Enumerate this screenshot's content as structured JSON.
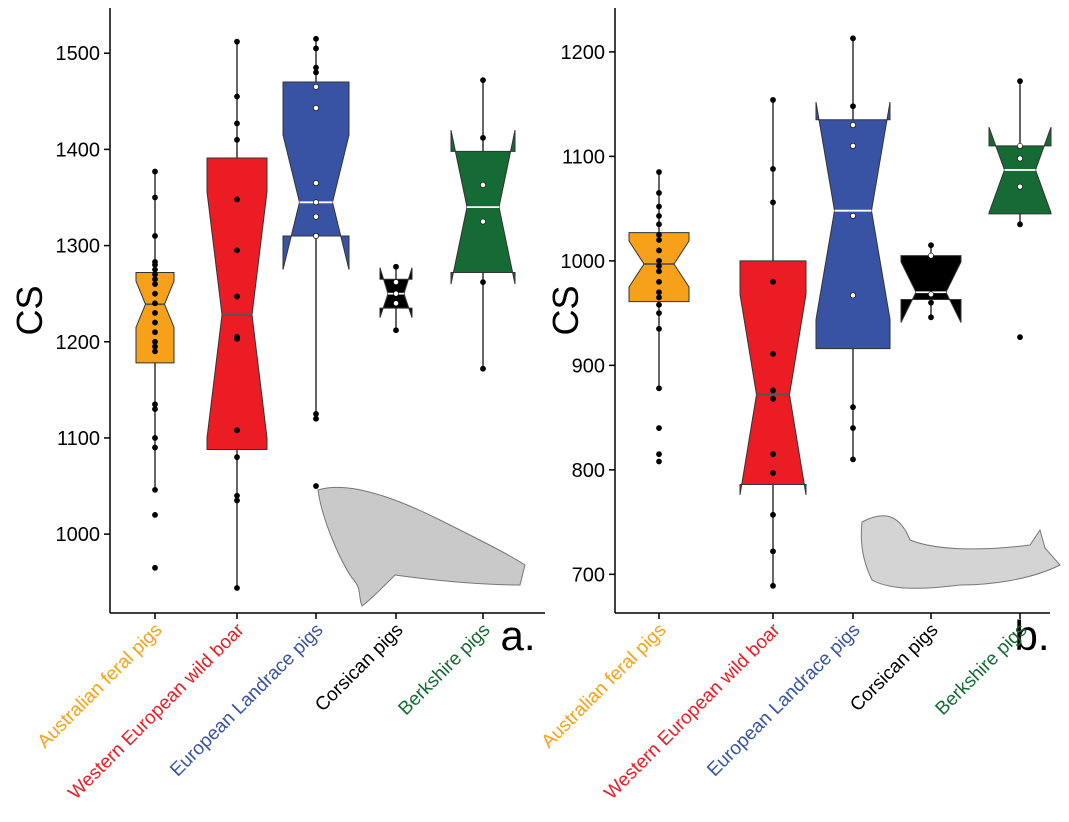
{
  "chart_data": [
    {
      "type": "boxplot",
      "ylabel": "CS",
      "panel_label": "a.",
      "ylim": [
        918,
        1547
      ],
      "yticks": [
        1000,
        1100,
        1200,
        1300,
        1400,
        1500
      ],
      "categories": [
        "Australian feral pigs",
        "Western European wild boar",
        "European Landrace pigs",
        "Corsican pigs",
        "Berkshire pigs"
      ],
      "colors": [
        "#f7a11a",
        "#ec1c24",
        "#3953a4",
        "#000000",
        "#166a34"
      ],
      "label_colors": [
        "#f7a11a",
        "#ec1c24",
        "#3953a4",
        "#000000",
        "#166a34"
      ],
      "median_colors": [
        "#555555",
        "#555555",
        "#ffffff",
        "#ffffff",
        "#ffffff"
      ],
      "inner_point_colors": [
        "#000000",
        "#000000",
        "#ffffff",
        "#ffffff",
        "#ffffff"
      ],
      "boxes": [
        {
          "whisker_low": 1046,
          "q1": 1178,
          "median": 1239,
          "q3": 1272,
          "whisker_high": 1377,
          "notch": [
            1215,
            1263
          ],
          "points": [
            1377,
            1350,
            1310,
            1283,
            1280,
            1275,
            1270,
            1265,
            1260,
            1250,
            1240,
            1230,
            1220,
            1210,
            1200,
            1195,
            1190,
            1135,
            1130,
            1100,
            1090,
            1046,
            1020,
            965
          ]
        },
        {
          "whisker_low": 944,
          "q1": 1088,
          "median": 1228,
          "q3": 1391,
          "whisker_high": 1512,
          "notch": [
            1100,
            1356
          ],
          "points": [
            1512,
            1455,
            1427,
            1410,
            1348,
            1295,
            1247,
            1205,
            1203,
            1108,
            1080,
            1040,
            1035,
            944
          ]
        },
        {
          "whisker_low": 1120,
          "q1": 1310,
          "median": 1345,
          "q3": 1470,
          "whisker_high": 1515,
          "notch": [
            1275,
            1415
          ],
          "points": [
            1515,
            1505,
            1485,
            1480,
            1465,
            1443,
            1365,
            1345,
            1330,
            1310,
            1310,
            1125,
            1120,
            1050
          ]
        },
        {
          "whisker_low": 1212,
          "q1": 1235,
          "median": 1250,
          "q3": 1265,
          "whisker_high": 1278,
          "notch": [
            1225,
            1277
          ],
          "points": [
            1278,
            1262,
            1250,
            1240,
            1212
          ]
        },
        {
          "whisker_low": 1172,
          "q1": 1272,
          "median": 1340,
          "q3": 1398,
          "whisker_high": 1472,
          "notch": [
            1260,
            1420
          ],
          "points": [
            1472,
            1412,
            1363,
            1325,
            1262,
            1172
          ]
        }
      ]
    },
    {
      "type": "boxplot",
      "ylabel": "CS",
      "panel_label": "b.",
      "ylim": [
        663,
        1242
      ],
      "yticks": [
        700,
        800,
        900,
        1000,
        1100,
        1200
      ],
      "categories": [
        "Australian feral pigs",
        "Western European wild boar",
        "European Landrace pigs",
        "Corsican pigs",
        "Berkshire pigs"
      ],
      "colors": [
        "#f7a11a",
        "#ec1c24",
        "#3953a4",
        "#000000",
        "#166a34"
      ],
      "label_colors": [
        "#f7a11a",
        "#ec1c24",
        "#3953a4",
        "#000000",
        "#166a34"
      ],
      "median_colors": [
        "#555555",
        "#555555",
        "#ffffff",
        "#ffffff",
        "#ffffff"
      ],
      "inner_point_colors": [
        "#000000",
        "#000000",
        "#ffffff",
        "#ffffff",
        "#ffffff"
      ],
      "boxes": [
        {
          "whisker_low": 878,
          "q1": 961,
          "median": 997,
          "q3": 1027,
          "whisker_high": 1085,
          "notch": [
            975,
            1019
          ],
          "points": [
            1085,
            1065,
            1052,
            1043,
            1035,
            1025,
            1020,
            1010,
            1000,
            995,
            990,
            980,
            970,
            965,
            958,
            950,
            935,
            878,
            840,
            815,
            808
          ]
        },
        {
          "whisker_low": 689,
          "q1": 786,
          "median": 872,
          "q3": 1000,
          "whisker_high": 1154,
          "notch": [
            776,
            968
          ],
          "points": [
            1154,
            1088,
            1056,
            980,
            911,
            876,
            868,
            815,
            797,
            757,
            722,
            689
          ]
        },
        {
          "whisker_low": 810,
          "q1": 916,
          "median": 1048,
          "q3": 1135,
          "whisker_high": 1213,
          "notch": [
            944,
            1152
          ],
          "points": [
            1213,
            1148,
            1130,
            1110,
            1043,
            967,
            860,
            840,
            810
          ]
        },
        {
          "whisker_low": 946,
          "q1": 963,
          "median": 970,
          "q3": 1005,
          "whisker_high": 1015,
          "notch": [
            941,
            999
          ],
          "points": [
            1015,
            1005,
            968,
            960,
            946
          ]
        },
        {
          "whisker_low": 1035,
          "q1": 1045,
          "median": 1087,
          "q3": 1110,
          "whisker_high": 1172,
          "notch": [
            1046,
            1128
          ],
          "points": [
            1172,
            1110,
            1098,
            1071,
            1035,
            927
          ]
        }
      ]
    }
  ]
}
